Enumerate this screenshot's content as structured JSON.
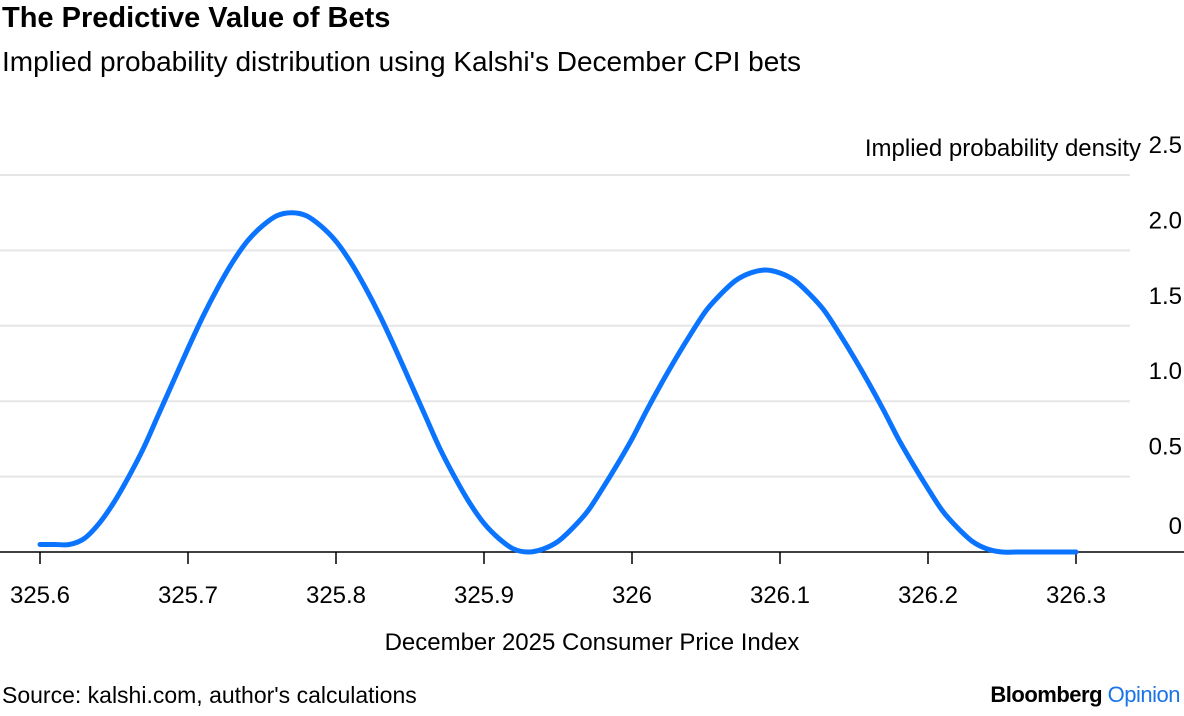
{
  "title": "The Predictive Value of Bets",
  "subtitle": "Implied probability distribution using Kalshi's December CPI bets",
  "source": "Source: kalshi.com, author's calculations",
  "brand": {
    "name": "Bloomberg",
    "suffix": "Opinion",
    "suffix_color": "#1a73e8"
  },
  "chart_data": {
    "type": "line",
    "title": "The Predictive Value of Bets",
    "xlabel": "December 2025 Consumer Price Index",
    "ylabel": "Implied probability density",
    "xlim": [
      325.6,
      326.3
    ],
    "ylim": [
      0,
      2.5
    ],
    "x_ticks": [
      "325.6",
      "325.7",
      "325.8",
      "325.9",
      "326",
      "326.1",
      "326.2",
      "326.3"
    ],
    "y_ticks": [
      "0",
      "0.5",
      "1.0",
      "1.5",
      "2.0",
      "2.5"
    ],
    "grid": "horizontal",
    "line_color": "#0a74ff",
    "x": [
      325.6,
      325.61,
      325.62,
      325.63,
      325.64,
      325.65,
      325.66,
      325.67,
      325.68,
      325.69,
      325.7,
      325.71,
      325.72,
      325.73,
      325.74,
      325.75,
      325.76,
      325.77,
      325.78,
      325.79,
      325.8,
      325.81,
      325.82,
      325.83,
      325.84,
      325.85,
      325.86,
      325.87,
      325.88,
      325.89,
      325.9,
      325.91,
      325.92,
      325.93,
      325.94,
      325.95,
      325.96,
      325.97,
      325.98,
      325.99,
      326.0,
      326.01,
      326.02,
      326.03,
      326.04,
      326.05,
      326.06,
      326.07,
      326.08,
      326.09,
      326.1,
      326.11,
      326.12,
      326.13,
      326.14,
      326.15,
      326.16,
      326.17,
      326.18,
      326.19,
      326.2,
      326.21,
      326.22,
      326.23,
      326.24,
      326.25,
      326.26,
      326.27,
      326.28,
      326.29,
      326.3
    ],
    "y": [
      0.05,
      0.05,
      0.05,
      0.09,
      0.19,
      0.33,
      0.5,
      0.69,
      0.91,
      1.13,
      1.35,
      1.56,
      1.75,
      1.92,
      2.06,
      2.16,
      2.23,
      2.25,
      2.23,
      2.16,
      2.06,
      1.92,
      1.75,
      1.56,
      1.35,
      1.13,
      0.91,
      0.69,
      0.5,
      0.33,
      0.19,
      0.09,
      0.02,
      0,
      0.02,
      0.07,
      0.16,
      0.27,
      0.42,
      0.58,
      0.75,
      0.94,
      1.12,
      1.29,
      1.45,
      1.6,
      1.71,
      1.8,
      1.85,
      1.87,
      1.85,
      1.8,
      1.71,
      1.6,
      1.45,
      1.29,
      1.12,
      0.94,
      0.75,
      0.58,
      0.42,
      0.27,
      0.16,
      0.07,
      0.02,
      0,
      0,
      0,
      0,
      0,
      0
    ]
  }
}
